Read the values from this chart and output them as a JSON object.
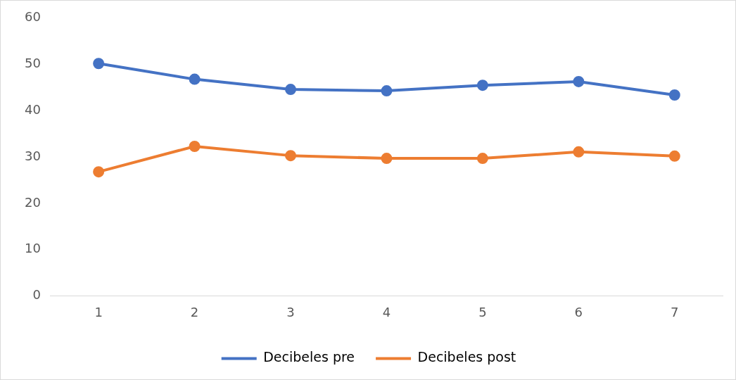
{
  "chart_data": {
    "type": "line",
    "categories": [
      "1",
      "2",
      "3",
      "4",
      "5",
      "6",
      "7"
    ],
    "series": [
      {
        "name": "Decibeles pre",
        "color": "#4472c4",
        "values": [
          50.2,
          46.8,
          44.6,
          44.3,
          45.5,
          46.3,
          43.4
        ]
      },
      {
        "name": "Decibeles post",
        "color": "#ed7d31",
        "values": [
          26.8,
          32.3,
          30.3,
          29.7,
          29.7,
          31.1,
          30.2
        ]
      }
    ],
    "ylim": [
      0,
      60
    ],
    "yticks": [
      0,
      10,
      20,
      30,
      40,
      50,
      60
    ],
    "grid": false,
    "legend": "bottom",
    "marker": "circle",
    "line_style": "solid"
  }
}
